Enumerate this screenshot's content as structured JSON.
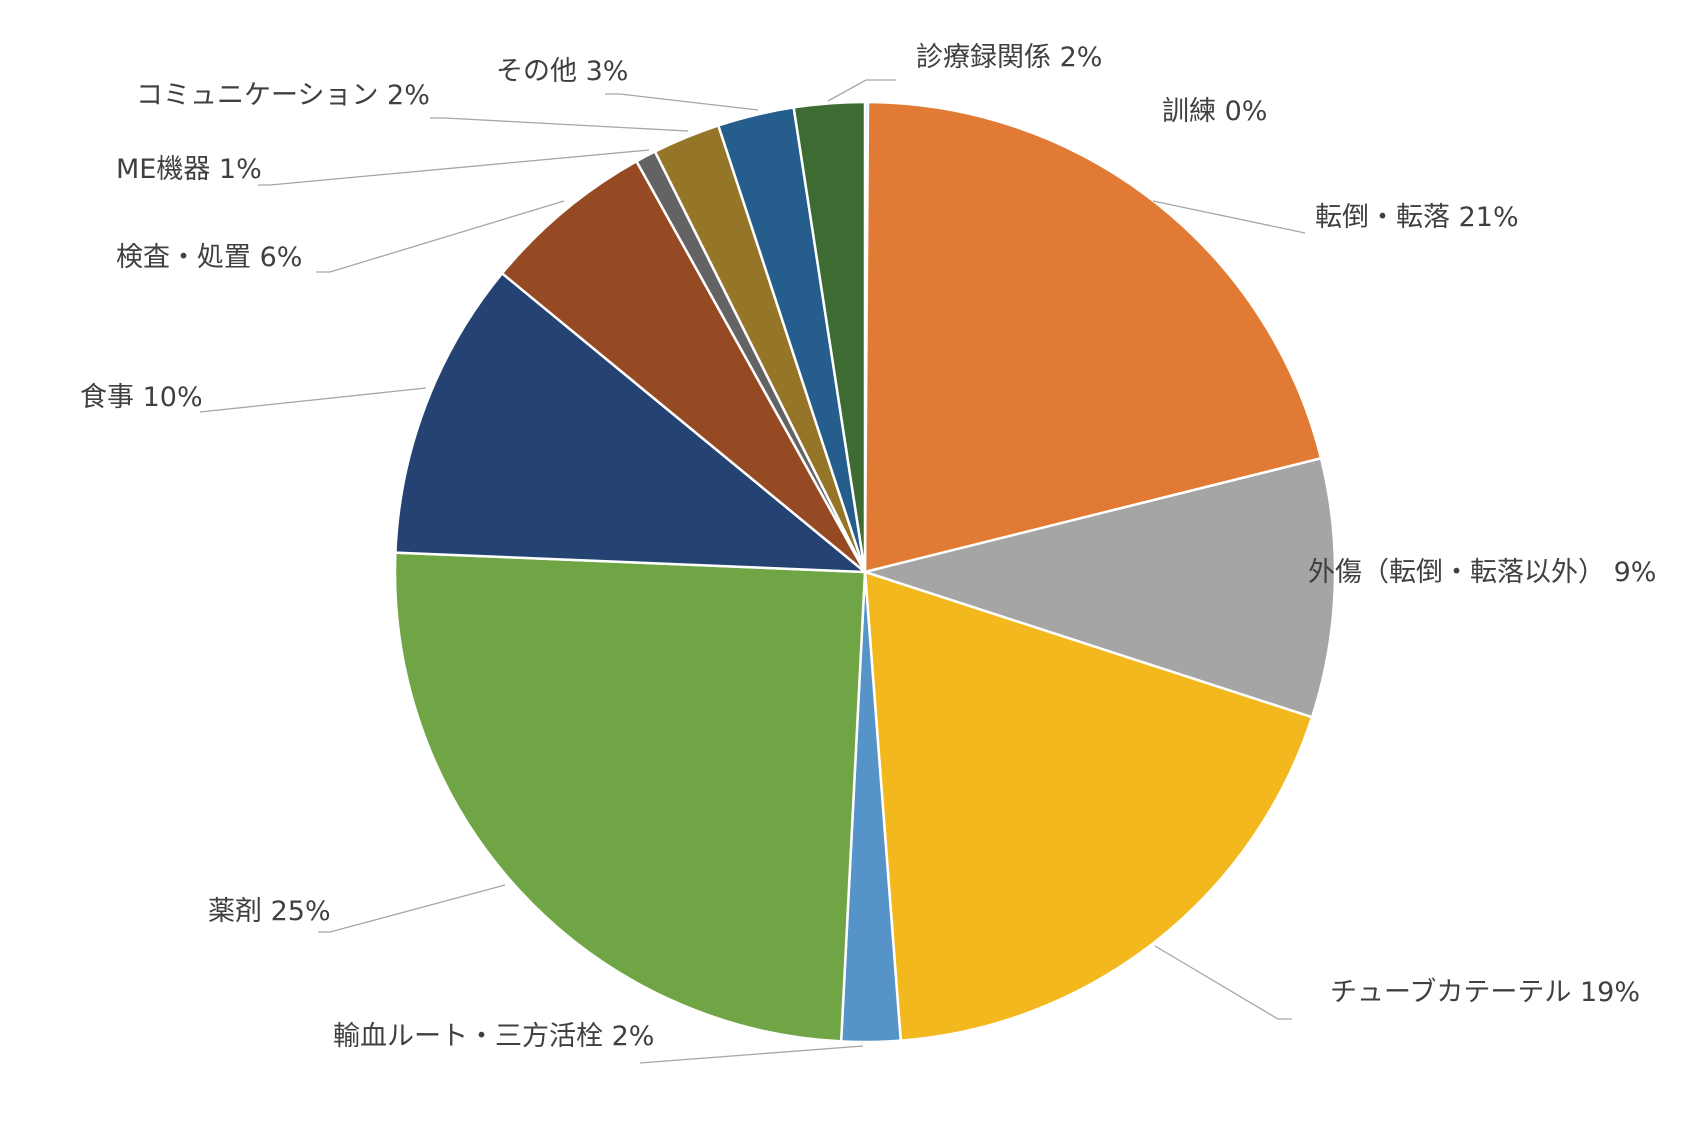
{
  "chart_data": {
    "type": "pie",
    "start_angle_deg": 0,
    "direction": "clockwise",
    "slices": [
      {
        "label": "訓練",
        "pct_label": "0%",
        "value": 0.1,
        "color": "#5b9bd5"
      },
      {
        "label": "転倒・転落",
        "pct_label": "21%",
        "value": 20.8,
        "color": "#e07a34"
      },
      {
        "label": "外傷（転倒・転落以外）",
        "pct_label": "9%",
        "value": 8.8,
        "color": "#a5a5a5"
      },
      {
        "label": "チューブカテーテル",
        "pct_label": "19%",
        "value": 18.6,
        "color": "#f2b81d"
      },
      {
        "label": "輸血ルート・三方活栓",
        "pct_label": "2%",
        "value": 2.0,
        "color": "#5693c9"
      },
      {
        "label": "薬剤",
        "pct_label": "25%",
        "value": 24.6,
        "color": "#70a545"
      },
      {
        "label": "食事",
        "pct_label": "10%",
        "value": 10.2,
        "color": "#244272"
      },
      {
        "label": "検査・処置",
        "pct_label": "6%",
        "value": 5.9,
        "color": "#954a24"
      },
      {
        "label": "ME機器",
        "pct_label": "1%",
        "value": 0.7,
        "color": "#636363"
      },
      {
        "label": "コミュニケーション",
        "pct_label": "2%",
        "value": 2.3,
        "color": "#957528"
      },
      {
        "label": "その他",
        "pct_label": "3%",
        "value": 2.6,
        "color": "#255d8d"
      },
      {
        "label": "診療録関係",
        "pct_label": "2%",
        "value": 2.4,
        "color": "#3d6b32"
      }
    ],
    "title": "",
    "legend": "none"
  }
}
